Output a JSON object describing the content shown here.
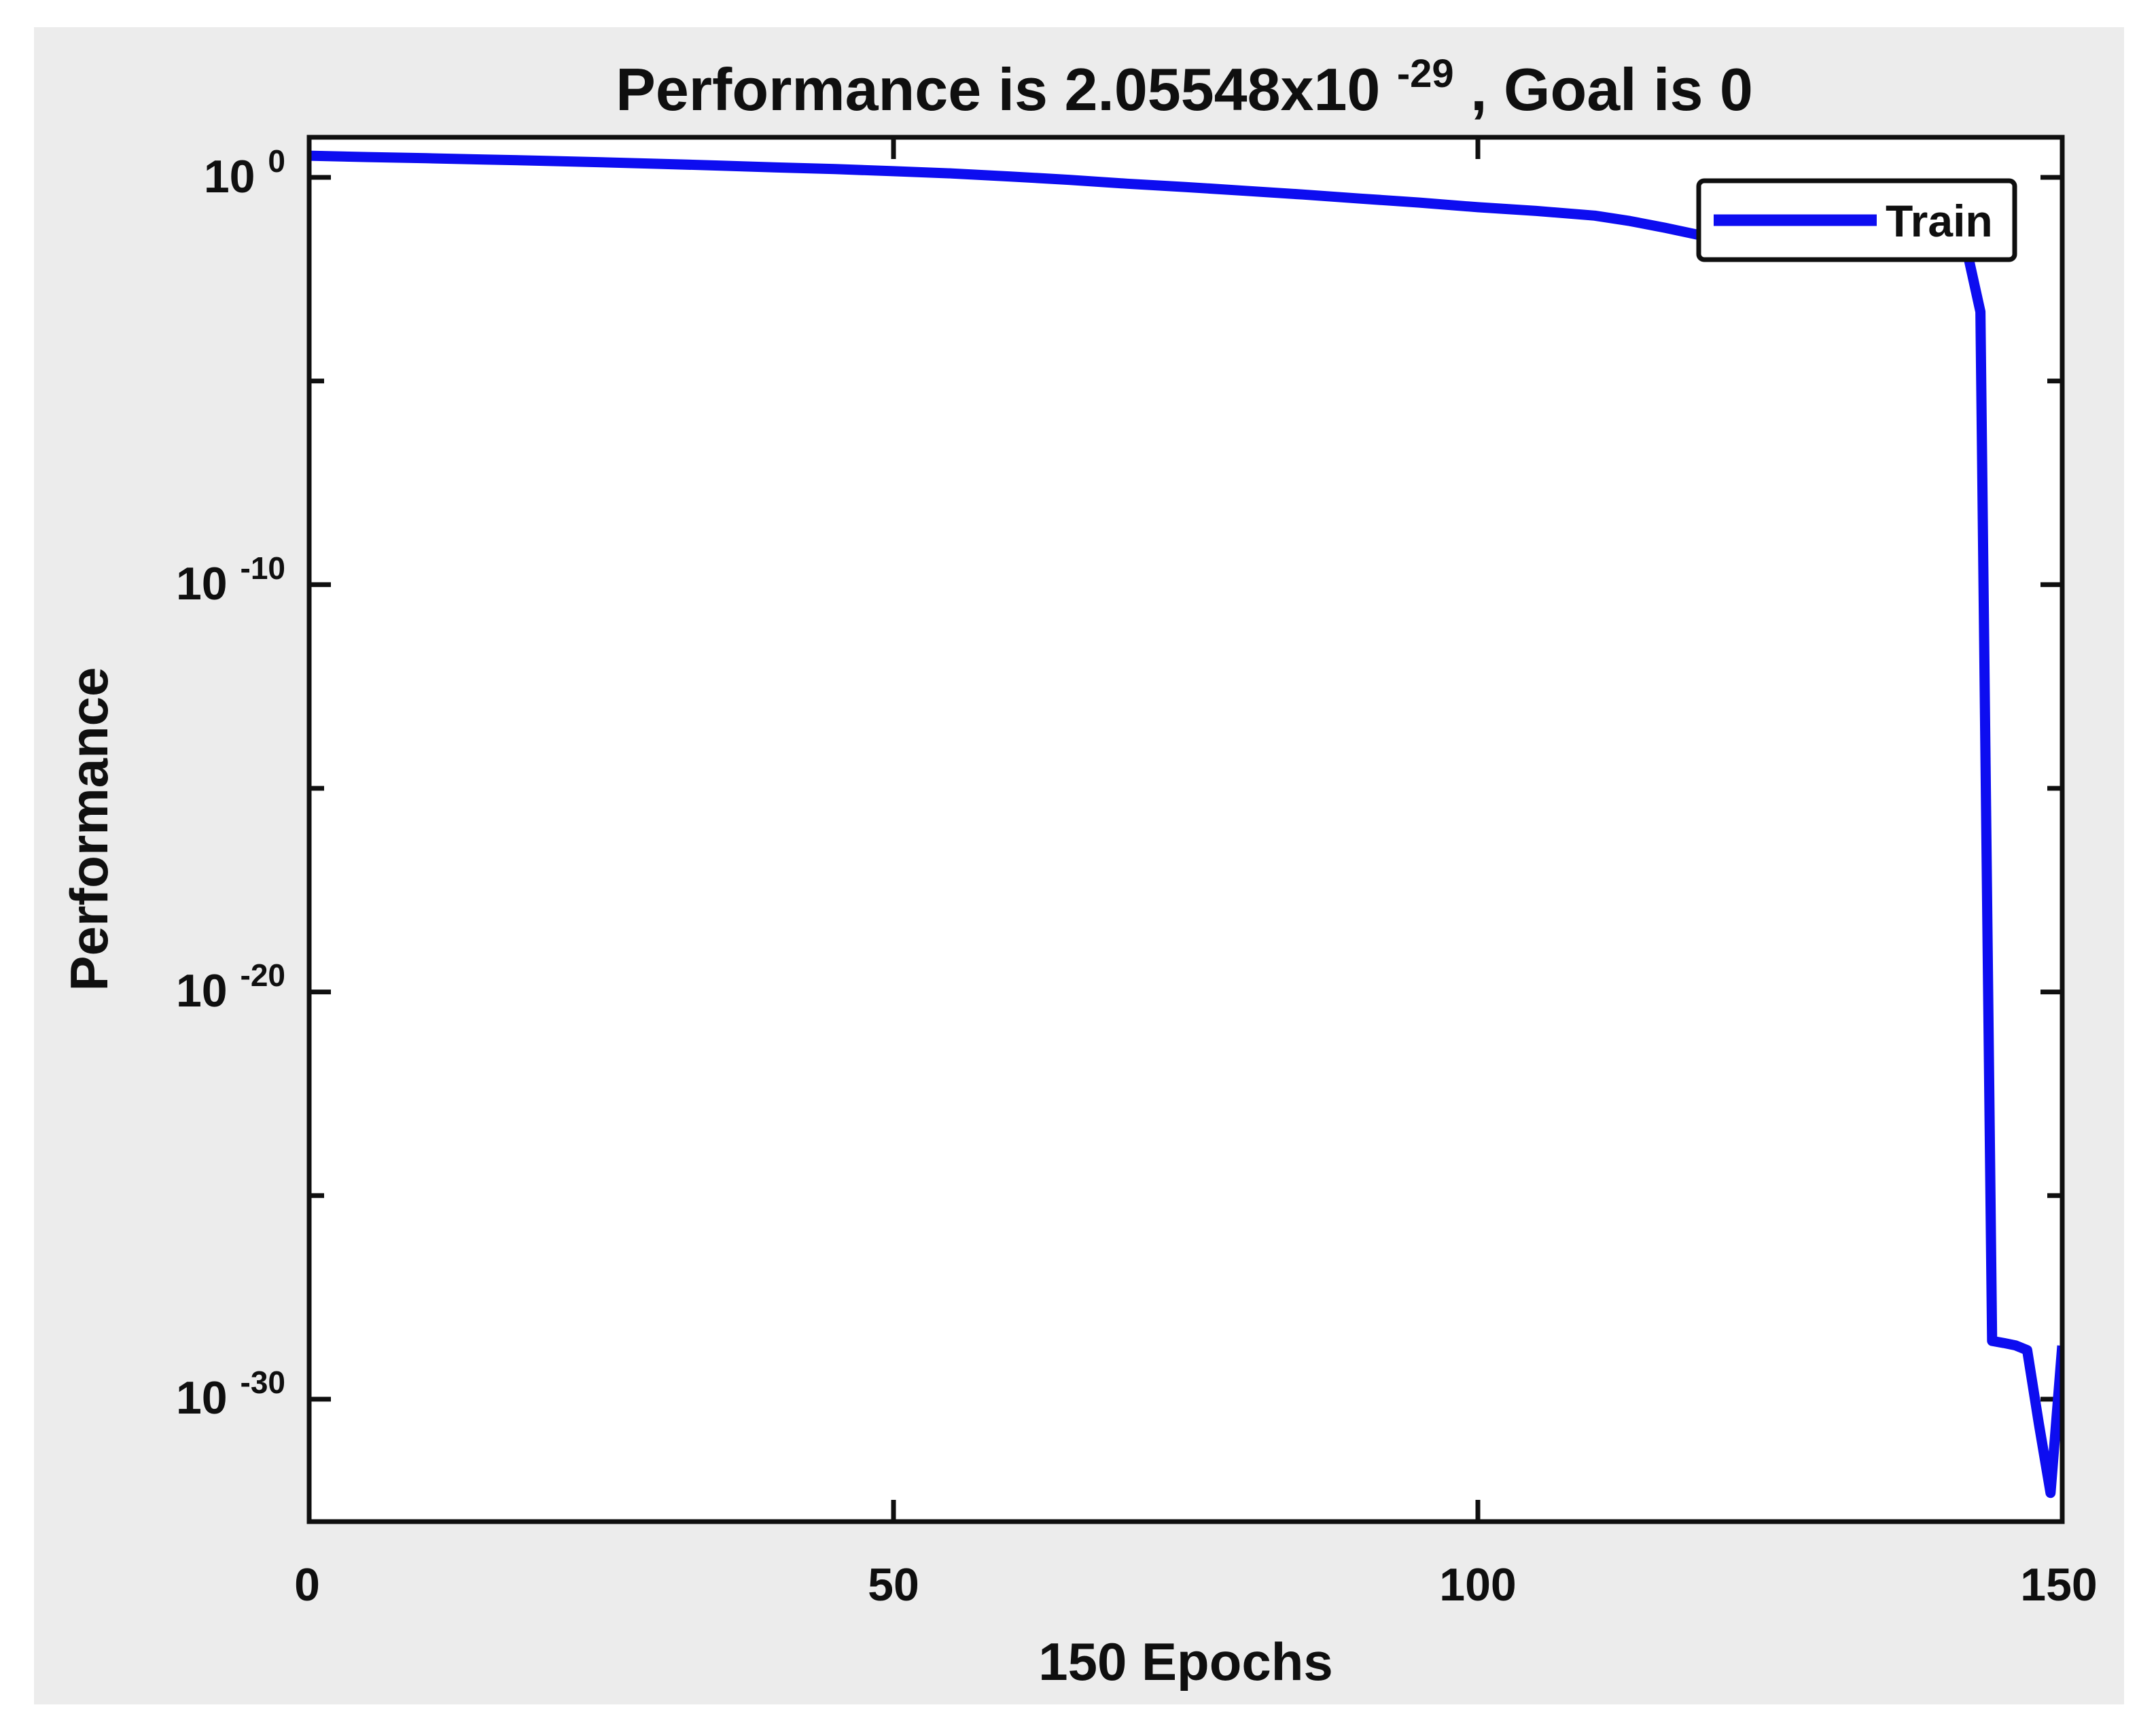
{
  "figure": {
    "background_color": "#ececec",
    "plot_background": "#ffffff",
    "axis_color": "#0f0f0f",
    "line_color": "#0d0df0",
    "title": {
      "pre": "Performance is 2.05548x10",
      "exp": "-29",
      "post": ", Goal is 0"
    }
  },
  "axes": {
    "x": {
      "label": "150 Epochs",
      "ticks": [
        "0",
        "50",
        "100",
        "150"
      ]
    },
    "y": {
      "label": "Performance",
      "ticks": [
        {
          "base": "10",
          "exp": "0"
        },
        {
          "base": "10",
          "exp": "-10"
        },
        {
          "base": "10",
          "exp": "-20"
        },
        {
          "base": "10",
          "exp": "-30"
        }
      ]
    }
  },
  "legend": {
    "items": [
      {
        "label": "Train",
        "color": "#0d0df0"
      }
    ]
  },
  "chart_data": {
    "type": "line",
    "title": "Performance is 2.05548x10^-29, Goal is 0",
    "xlabel": "150 Epochs",
    "ylabel": "Performance",
    "yscale": "log",
    "xlim": [
      0,
      150
    ],
    "ylim": [
      1e-33,
      8
    ],
    "x_ticks": [
      0,
      50,
      100,
      150
    ],
    "y_tick_labels": [
      "1e0",
      "1e-10",
      "1e-20",
      "1e-30"
    ],
    "y_minor_tick_exponents": [
      -5,
      -15,
      -25
    ],
    "grid": false,
    "legend_position": "upper right",
    "final_performance": 2.05548e-29,
    "goal": 0,
    "total_epochs": 150,
    "series": [
      {
        "name": "Train",
        "x": [
          0,
          5,
          10,
          15,
          20,
          25,
          30,
          35,
          40,
          45,
          50,
          55,
          60,
          65,
          70,
          75,
          80,
          85,
          90,
          95,
          100,
          105,
          110,
          113,
          116,
          119,
          122,
          125,
          130,
          135,
          140,
          141,
          142,
          143,
          144,
          145,
          146,
          147,
          148,
          149,
          150
        ],
        "y": [
          3.4,
          3.15,
          2.95,
          2.75,
          2.55,
          2.35,
          2.15,
          1.95,
          1.75,
          1.6,
          1.42,
          1.25,
          1.05,
          0.87,
          0.7,
          0.58,
          0.47,
          0.38,
          0.3,
          0.24,
          0.185,
          0.15,
          0.115,
          0.085,
          0.058,
          0.038,
          0.032,
          0.028,
          0.024,
          0.021,
          0.017,
          0.015,
          0.01,
          0.0005,
          2.7e-29,
          2.4e-29,
          2.1e-29,
          1.6e-29,
          2.5e-31,
          5e-33,
          2.05548e-29
        ]
      }
    ]
  }
}
